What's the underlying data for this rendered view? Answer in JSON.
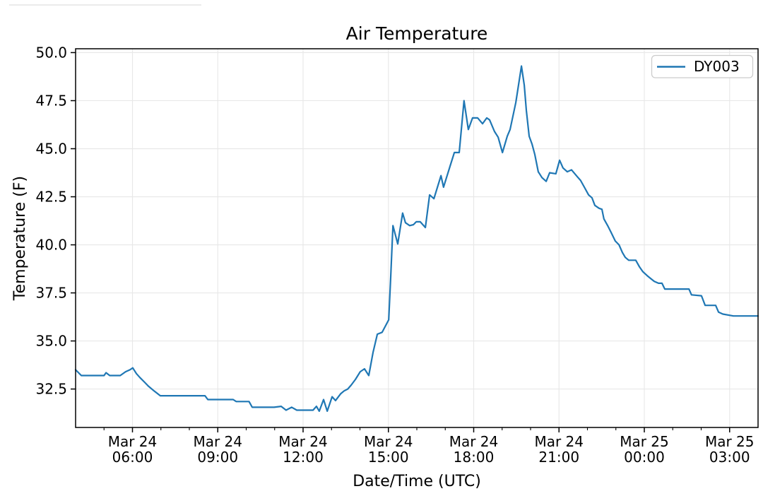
{
  "figure": {
    "title": "Air Temperature",
    "x_axis_label": "Date/Time (UTC)",
    "y_axis_label": "Temperature (F)",
    "legend": {
      "entries": [
        {
          "label": "DY003",
          "color": "#1f77b4"
        }
      ]
    },
    "colors": {
      "line": "#1f77b4",
      "grid": "#e8e8e8",
      "axis": "#000000",
      "background": "#ffffff",
      "legend_border": "#cccccc"
    }
  },
  "chart_data": {
    "type": "line",
    "title": "Air Temperature",
    "xlabel": "Date/Time (UTC)",
    "ylabel": "Temperature (F)",
    "x_unit": "hours since Mar 24 00:00 UTC",
    "xlim": [
      4,
      28
    ],
    "ylim": [
      30.5,
      50.2
    ],
    "grid": true,
    "legend_position": "upper right",
    "yticks": [
      32.5,
      35.0,
      37.5,
      40.0,
      42.5,
      45.0,
      47.5,
      50.0
    ],
    "xticks": [
      {
        "hour": 6,
        "label": [
          "Mar 24",
          "06:00"
        ]
      },
      {
        "hour": 9,
        "label": [
          "Mar 24",
          "09:00"
        ]
      },
      {
        "hour": 12,
        "label": [
          "Mar 24",
          "12:00"
        ]
      },
      {
        "hour": 15,
        "label": [
          "Mar 24",
          "15:00"
        ]
      },
      {
        "hour": 18,
        "label": [
          "Mar 24",
          "18:00"
        ]
      },
      {
        "hour": 21,
        "label": [
          "Mar 24",
          "21:00"
        ]
      },
      {
        "hour": 24,
        "label": [
          "Mar 25",
          "00:00"
        ]
      },
      {
        "hour": 27,
        "label": [
          "Mar 25",
          "03:00"
        ]
      }
    ],
    "minor_xtick_interval_hours": 1,
    "series": [
      {
        "name": "DY003",
        "color": "#1f77b4",
        "points": [
          [
            4.0,
            33.5
          ],
          [
            4.2,
            33.2
          ],
          [
            4.6,
            33.2
          ],
          [
            5.0,
            33.2
          ],
          [
            5.07,
            33.35
          ],
          [
            5.2,
            33.2
          ],
          [
            5.57,
            33.2
          ],
          [
            5.76,
            33.4
          ],
          [
            5.91,
            33.5
          ],
          [
            6.01,
            33.6
          ],
          [
            6.14,
            33.3
          ],
          [
            6.26,
            33.1
          ],
          [
            6.43,
            32.85
          ],
          [
            6.56,
            32.65
          ],
          [
            6.76,
            32.4
          ],
          [
            6.98,
            32.15
          ],
          [
            7.5,
            32.15
          ],
          [
            8.0,
            32.15
          ],
          [
            8.55,
            32.15
          ],
          [
            8.65,
            31.95
          ],
          [
            9.0,
            31.95
          ],
          [
            9.54,
            31.95
          ],
          [
            9.65,
            31.85
          ],
          [
            10.1,
            31.85
          ],
          [
            10.21,
            31.55
          ],
          [
            10.6,
            31.55
          ],
          [
            10.98,
            31.55
          ],
          [
            11.23,
            31.6
          ],
          [
            11.4,
            31.4
          ],
          [
            11.6,
            31.55
          ],
          [
            11.78,
            31.4
          ],
          [
            12.1,
            31.4
          ],
          [
            12.35,
            31.4
          ],
          [
            12.47,
            31.6
          ],
          [
            12.57,
            31.35
          ],
          [
            12.72,
            31.95
          ],
          [
            12.85,
            31.35
          ],
          [
            13.02,
            32.1
          ],
          [
            13.14,
            31.9
          ],
          [
            13.32,
            32.25
          ],
          [
            13.44,
            32.4
          ],
          [
            13.57,
            32.5
          ],
          [
            13.69,
            32.7
          ],
          [
            13.84,
            33.0
          ],
          [
            14.01,
            33.4
          ],
          [
            14.16,
            33.55
          ],
          [
            14.31,
            33.2
          ],
          [
            14.46,
            34.4
          ],
          [
            14.61,
            35.35
          ],
          [
            14.78,
            35.45
          ],
          [
            15.01,
            36.1
          ],
          [
            15.08,
            38.3
          ],
          [
            15.16,
            41.0
          ],
          [
            15.33,
            40.05
          ],
          [
            15.5,
            41.65
          ],
          [
            15.6,
            41.15
          ],
          [
            15.75,
            41.0
          ],
          [
            15.88,
            41.05
          ],
          [
            15.98,
            41.2
          ],
          [
            16.12,
            41.2
          ],
          [
            16.3,
            40.9
          ],
          [
            16.45,
            42.6
          ],
          [
            16.6,
            42.4
          ],
          [
            16.85,
            43.6
          ],
          [
            16.94,
            43.0
          ],
          [
            17.17,
            44.1
          ],
          [
            17.32,
            44.8
          ],
          [
            17.49,
            44.8
          ],
          [
            17.66,
            47.5
          ],
          [
            17.81,
            46.0
          ],
          [
            17.96,
            46.6
          ],
          [
            18.14,
            46.6
          ],
          [
            18.31,
            46.3
          ],
          [
            18.46,
            46.6
          ],
          [
            18.56,
            46.5
          ],
          [
            18.73,
            45.9
          ],
          [
            18.86,
            45.6
          ],
          [
            19.01,
            44.8
          ],
          [
            19.18,
            45.65
          ],
          [
            19.28,
            46.0
          ],
          [
            19.48,
            47.4
          ],
          [
            19.68,
            49.3
          ],
          [
            19.78,
            48.3
          ],
          [
            19.85,
            47.0
          ],
          [
            19.95,
            45.65
          ],
          [
            20.05,
            45.25
          ],
          [
            20.15,
            44.7
          ],
          [
            20.27,
            43.8
          ],
          [
            20.4,
            43.5
          ],
          [
            20.55,
            43.3
          ],
          [
            20.67,
            43.75
          ],
          [
            20.89,
            43.7
          ],
          [
            21.02,
            44.4
          ],
          [
            21.14,
            44.0
          ],
          [
            21.29,
            43.8
          ],
          [
            21.44,
            43.9
          ],
          [
            21.64,
            43.55
          ],
          [
            21.76,
            43.35
          ],
          [
            21.89,
            43.0
          ],
          [
            22.04,
            42.6
          ],
          [
            22.16,
            42.45
          ],
          [
            22.26,
            42.05
          ],
          [
            22.41,
            41.9
          ],
          [
            22.51,
            41.85
          ],
          [
            22.58,
            41.35
          ],
          [
            22.71,
            41.0
          ],
          [
            22.83,
            40.65
          ],
          [
            22.98,
            40.2
          ],
          [
            23.11,
            40.0
          ],
          [
            23.23,
            39.6
          ],
          [
            23.33,
            39.35
          ],
          [
            23.45,
            39.2
          ],
          [
            23.7,
            39.2
          ],
          [
            23.83,
            38.85
          ],
          [
            23.95,
            38.6
          ],
          [
            24.1,
            38.4
          ],
          [
            24.22,
            38.25
          ],
          [
            24.35,
            38.1
          ],
          [
            24.5,
            38.0
          ],
          [
            24.62,
            38.0
          ],
          [
            24.72,
            37.7
          ],
          [
            25.2,
            37.7
          ],
          [
            25.57,
            37.7
          ],
          [
            25.66,
            37.4
          ],
          [
            26.01,
            37.35
          ],
          [
            26.14,
            36.85
          ],
          [
            26.51,
            36.85
          ],
          [
            26.61,
            36.5
          ],
          [
            26.76,
            36.4
          ],
          [
            27.13,
            36.3
          ],
          [
            27.5,
            36.3
          ],
          [
            28.0,
            36.3
          ]
        ]
      }
    ]
  }
}
